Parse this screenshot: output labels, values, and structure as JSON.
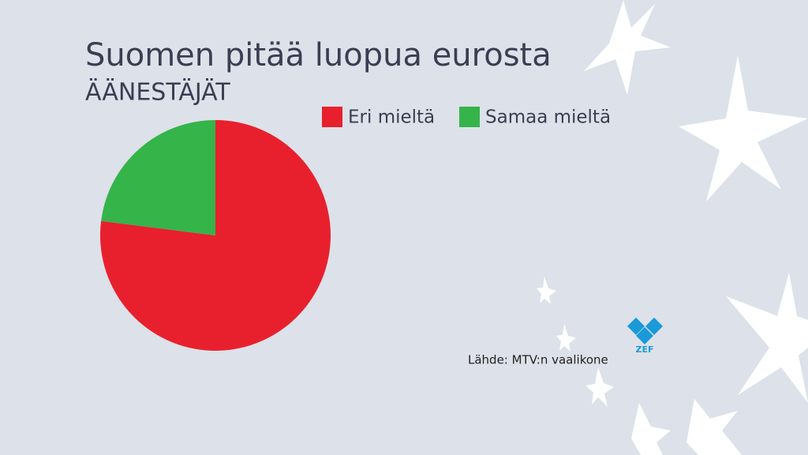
{
  "chart_data": {
    "type": "pie",
    "title": "Suomen pitää luopua eurosta",
    "subtitle": "ÄÄNESTÄJÄT",
    "categories": [
      "Eri mieltä",
      "Samaa mieltä"
    ],
    "values": [
      77,
      23
    ],
    "colors": [
      "#e8202e",
      "#35b44a"
    ],
    "legend": "top-right",
    "source": "Lähde: MTV:n vaalikone",
    "logo": "ZEF"
  }
}
